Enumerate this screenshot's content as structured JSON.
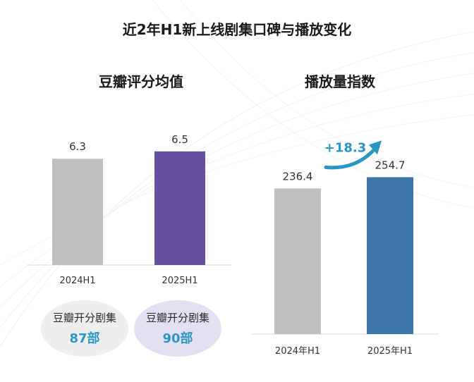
{
  "title": "近2年H1新上线剧集口碑与播放变化",
  "colors": {
    "grey": "#bfbfbf",
    "purple": "#664f9e",
    "blue": "#3e76ab",
    "teal": "#2b96c4"
  },
  "douban_note": {
    "items": [
      {
        "label": "豆瓣开分剧集",
        "value": "87部"
      },
      {
        "label": "豆瓣开分剧集",
        "value": "90部"
      }
    ]
  },
  "chart_data": [
    {
      "type": "bar",
      "title": "豆瓣评分均值",
      "categories": [
        "2024H1",
        "2025H1"
      ],
      "values": [
        6.3,
        6.5
      ],
      "value_labels": [
        "6.3",
        "6.5"
      ],
      "colors": [
        "#bfbfbf",
        "#664f9e"
      ],
      "ylim": [
        3.4,
        6.65
      ]
    },
    {
      "type": "bar",
      "title": "播放量指数",
      "categories": [
        "2024年H1",
        "2025年H1"
      ],
      "values": [
        236.4,
        254.7
      ],
      "value_labels": [
        "236.4",
        "254.7"
      ],
      "colors": [
        "#bfbfbf",
        "#3e76ab"
      ],
      "ylim": [
        0,
        270
      ],
      "annotation": "+18.3"
    }
  ]
}
